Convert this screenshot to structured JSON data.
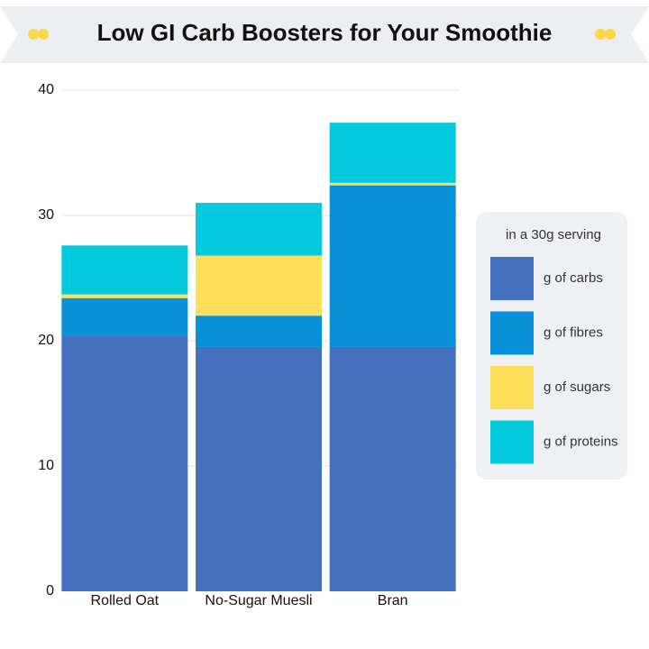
{
  "chart_data": {
    "type": "stacked-bar",
    "title": "Low GI Carb Boosters for Your Smoothie",
    "legend_title": "in a 30g serving",
    "categories": [
      "Rolled Oat",
      "No-Sugar Muesli",
      "Bran"
    ],
    "series": [
      {
        "name": "g of carbs",
        "color": "#4570be",
        "values": [
          20.4,
          19.5,
          19.5
        ]
      },
      {
        "name": "g of fibres",
        "color": "#0891d6",
        "values": [
          3.0,
          2.5,
          12.9
        ]
      },
      {
        "name": "g of sugars",
        "color": "#fddf5b",
        "values": [
          0.3,
          4.8,
          0.2
        ]
      },
      {
        "name": "g of proteins",
        "color": "#05c9dc",
        "values": [
          3.9,
          4.2,
          4.8
        ]
      }
    ],
    "ylim": [
      0,
      40
    ],
    "yticks": [
      0,
      10,
      20,
      30,
      40
    ],
    "grid": true,
    "legend": "right"
  }
}
